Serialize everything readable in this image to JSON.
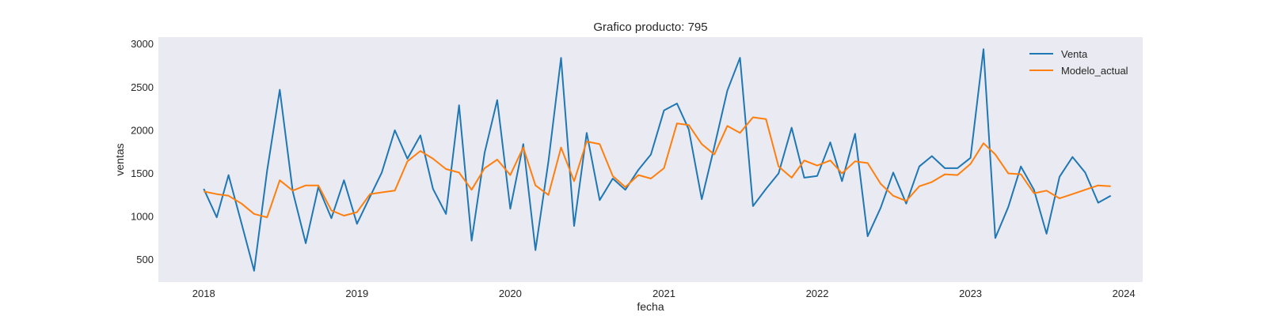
{
  "chart_data": {
    "type": "line",
    "title": "Grafico producto: 795",
    "xlabel": "fecha",
    "ylabel": "ventas",
    "x": [
      "2018-01",
      "2018-02",
      "2018-03",
      "2018-04",
      "2018-05",
      "2018-06",
      "2018-07",
      "2018-08",
      "2018-09",
      "2018-10",
      "2018-11",
      "2018-12",
      "2019-01",
      "2019-02",
      "2019-03",
      "2019-04",
      "2019-05",
      "2019-06",
      "2019-07",
      "2019-08",
      "2019-09",
      "2019-10",
      "2019-11",
      "2019-12",
      "2020-01",
      "2020-02",
      "2020-03",
      "2020-04",
      "2020-05",
      "2020-06",
      "2020-07",
      "2020-08",
      "2020-09",
      "2020-10",
      "2020-11",
      "2020-12",
      "2021-01",
      "2021-02",
      "2021-03",
      "2021-04",
      "2021-05",
      "2021-06",
      "2021-07",
      "2021-08",
      "2021-09",
      "2021-10",
      "2021-11",
      "2021-12",
      "2022-01",
      "2022-02",
      "2022-03",
      "2022-04",
      "2022-05",
      "2022-06",
      "2022-07",
      "2022-08",
      "2022-09",
      "2022-10",
      "2022-11",
      "2022-12",
      "2023-01",
      "2023-02",
      "2023-03",
      "2023-04",
      "2023-05",
      "2023-06",
      "2023-07",
      "2023-08",
      "2023-09",
      "2023-10",
      "2023-11",
      "2023-12"
    ],
    "series": [
      {
        "name": "Venta",
        "color": "#1f77b4",
        "values": [
          1320,
          990,
          1480,
          920,
          370,
          1530,
          2470,
          1290,
          690,
          1340,
          980,
          1420,
          915,
          1230,
          1510,
          2000,
          1670,
          1940,
          1320,
          1030,
          2290,
          720,
          1740,
          2350,
          1090,
          1840,
          610,
          1640,
          2840,
          890,
          1970,
          1190,
          1440,
          1310,
          1540,
          1720,
          2230,
          2310,
          2010,
          1200,
          1810,
          2460,
          2840,
          1120,
          1320,
          1500,
          2030,
          1450,
          1470,
          1860,
          1410,
          1960,
          770,
          1100,
          1510,
          1150,
          1580,
          1700,
          1560,
          1560,
          1680,
          2940,
          750,
          1110,
          1580,
          1310,
          800,
          1460,
          1690,
          1510,
          1160,
          1240
        ]
      },
      {
        "name": "Modelo_actual",
        "color": "#ff7f0e",
        "values": [
          1290,
          1260,
          1240,
          1150,
          1030,
          990,
          1420,
          1300,
          1360,
          1360,
          1070,
          1010,
          1050,
          1260,
          1280,
          1300,
          1640,
          1760,
          1670,
          1550,
          1510,
          1310,
          1560,
          1660,
          1480,
          1800,
          1360,
          1250,
          1800,
          1410,
          1870,
          1840,
          1470,
          1340,
          1480,
          1440,
          1560,
          2080,
          2060,
          1840,
          1720,
          2050,
          1970,
          2150,
          2130,
          1580,
          1450,
          1650,
          1590,
          1650,
          1500,
          1640,
          1620,
          1380,
          1240,
          1180,
          1350,
          1400,
          1490,
          1480,
          1610,
          1850,
          1720,
          1500,
          1490,
          1270,
          1300,
          1210,
          1260,
          1310,
          1360,
          1350
        ]
      }
    ],
    "x_ticks": [
      "2018",
      "2019",
      "2020",
      "2021",
      "2022",
      "2023",
      "2024"
    ],
    "y_ticks": [
      500,
      1000,
      1500,
      2000,
      2500,
      3000
    ],
    "xlim": [
      "2017-09-15",
      "2024-02-15"
    ],
    "ylim": [
      240,
      3080
    ],
    "grid": false,
    "legend": "top-right",
    "background": "#eaeaf2"
  }
}
